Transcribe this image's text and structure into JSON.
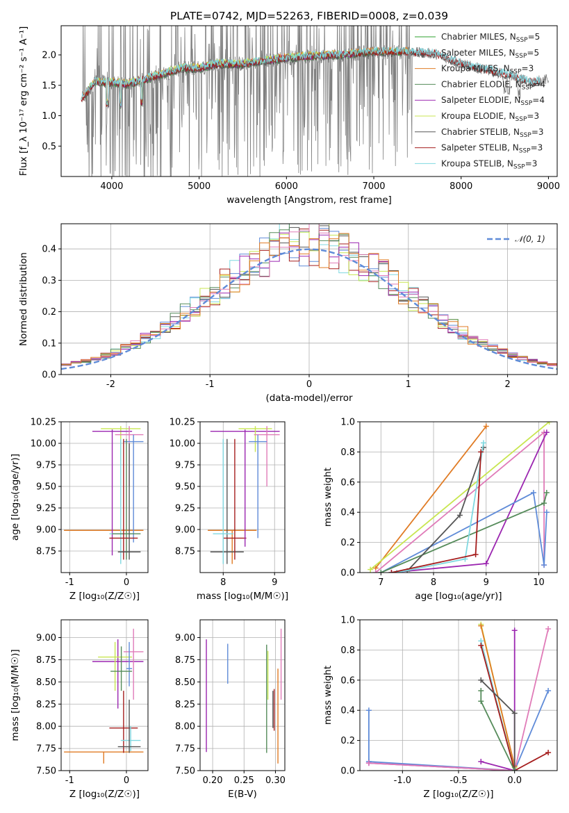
{
  "colors": {
    "Chabrier MILES": "#2ca02c",
    "Salpeter MILES": "#8c8c8c",
    "Kroupa MILES": "#e07b24",
    "Chabrier ELODIE": "#558b5a",
    "Salpeter ELODIE": "#9b26b0",
    "Kroupa ELODIE": "#c8e650",
    "Chabrier STELIB": "#555555",
    "Salpeter STELIB": "#a51d1d",
    "Kroupa STELIB": "#7fd8e0",
    "blue": "#5f8bd8",
    "pink": "#e07bb8",
    "data": "#808080",
    "normal": "#5f8bd8"
  },
  "chart_data": [
    {
      "id": "spectrum",
      "type": "line",
      "title": "PLATE=0742, MJD=52263, FIBERID=0008, z=0.039",
      "xlabel": "wavelength [Angstrom, rest frame]",
      "ylabel": "Flux [f_λ 10⁻¹⁷ erg cm⁻² s⁻¹ A⁻¹]",
      "xlim": [
        3420,
        9100
      ],
      "ylim": [
        0,
        2.48
      ],
      "xticks": [
        4000,
        5000,
        6000,
        7000,
        8000,
        9000
      ],
      "yticks": [
        0.5,
        1.0,
        1.5,
        2.0
      ],
      "legend_position": "top-right",
      "legend": [
        {
          "label": "Chabrier MILES, N",
          "sub": "SSP",
          "suffix": "=5",
          "series": "Chabrier MILES"
        },
        {
          "label": "Salpeter MILES, N",
          "sub": "SSP",
          "suffix": "=5",
          "series": "Salpeter MILES"
        },
        {
          "label": "Kroupa MILES, N",
          "sub": "SSP",
          "suffix": "=3",
          "series": "Kroupa MILES"
        },
        {
          "label": "Chabrier ELODIE, N",
          "sub": "SSP",
          "suffix": "=4",
          "series": "Chabrier ELODIE"
        },
        {
          "label": "Salpeter ELODIE, N",
          "sub": "SSP",
          "suffix": "=4",
          "series": "Salpeter ELODIE"
        },
        {
          "label": "Kroupa ELODIE, N",
          "sub": "SSP",
          "suffix": "=3",
          "series": "Kroupa ELODIE"
        },
        {
          "label": "Chabrier STELIB, N",
          "sub": "SSP",
          "suffix": "=3",
          "series": "Chabrier STELIB"
        },
        {
          "label": "Salpeter STELIB, N",
          "sub": "SSP",
          "suffix": "=3",
          "series": "Salpeter STELIB"
        },
        {
          "label": "Kroupa STELIB, N",
          "sub": "SSP",
          "suffix": "=3",
          "series": "Kroupa STELIB"
        }
      ],
      "continuum": [
        [
          3650,
          1.25
        ],
        [
          3800,
          1.55
        ],
        [
          4000,
          1.55
        ],
        [
          4200,
          1.52
        ],
        [
          4500,
          1.65
        ],
        [
          4800,
          1.78
        ],
        [
          5000,
          1.78
        ],
        [
          5200,
          1.85
        ],
        [
          5500,
          1.85
        ],
        [
          6000,
          1.95
        ],
        [
          6300,
          1.98
        ],
        [
          6600,
          2.0
        ],
        [
          7000,
          2.05
        ],
        [
          7400,
          2.05
        ],
        [
          7700,
          2.02
        ],
        [
          8000,
          1.85
        ],
        [
          8300,
          1.75
        ],
        [
          8600,
          1.65
        ],
        [
          8800,
          1.55
        ],
        [
          9000,
          1.6
        ]
      ],
      "model_range": {
        "Chabrier MILES": [
          3700,
          7400
        ],
        "Salpeter MILES": [
          3700,
          7400
        ],
        "Kroupa MILES": [
          3650,
          7450
        ],
        "Chabrier ELODIE": [
          3700,
          6800
        ],
        "Salpeter ELODIE": [
          3700,
          6800
        ],
        "Kroupa ELODIE": [
          3700,
          6800
        ],
        "Chabrier STELIB": [
          3650,
          8900
        ],
        "Salpeter STELIB": [
          3650,
          8900
        ],
        "Kroupa STELIB": [
          3650,
          8900
        ]
      },
      "data_noise_until": 7450
    },
    {
      "id": "residuals",
      "type": "histogram",
      "xlabel": "(data-model)/error",
      "ylabel": "Normed distribution",
      "xlim": [
        -2.5,
        2.5
      ],
      "ylim": [
        0,
        0.48
      ],
      "xticks": [
        -2,
        -1,
        0,
        1,
        2
      ],
      "yticks": [
        0.0,
        0.1,
        0.2,
        0.3,
        0.4
      ],
      "legend_position": "top-right",
      "normal_label": "𝒩(0, 1)",
      "bin_width": 0.1,
      "series_colors": [
        "#5f8bd8",
        "#7fd8e0",
        "#a51d1d",
        "#c8e650",
        "#555555",
        "#558b5a",
        "#9b26b0",
        "#e07bb8",
        "#e07b24"
      ]
    },
    {
      "id": "age_vs_Z",
      "type": "scatter",
      "xlabel": "Z [log₁₀(Z/Z☉)]",
      "ylabel": "age  [log₁₀(age/yr)]",
      "xlim": [
        -1.15,
        0.38
      ],
      "ylim": [
        8.5,
        10.25
      ],
      "xticks": [
        -1,
        0
      ],
      "yticks": [
        8.75,
        9.0,
        9.25,
        9.5,
        9.75,
        10.0,
        10.25
      ],
      "points": [
        {
          "c": "#e07b24",
          "x": -1.1,
          "x2": 0.3,
          "y": 8.99,
          "y1": 8.99,
          "y2": 8.99
        },
        {
          "c": "#c8e650",
          "x": -0.45,
          "x2": 0.25,
          "y": 10.17,
          "y1": 9.8,
          "y2": 10.2
        },
        {
          "c": "#9b26b0",
          "x": -0.6,
          "x2": 0.1,
          "y": 10.14,
          "y1": 8.7,
          "y2": 10.16
        },
        {
          "c": "#e07bb8",
          "x": -0.2,
          "x2": 0.3,
          "y": 10.1,
          "y1": 9.5,
          "y2": 10.2
        },
        {
          "c": "#5f8bd8",
          "x": -0.05,
          "x2": 0.3,
          "y": 10.02,
          "y1": 8.85,
          "y2": 10.1
        },
        {
          "c": "#7fd8e0",
          "x": -0.3,
          "x2": 0.1,
          "y": 8.95,
          "y1": 8.6,
          "y2": 10.05
        },
        {
          "c": "#558b5a",
          "x": -0.25,
          "x2": 0.25,
          "y": 8.95,
          "y1": 8.65,
          "y2": 10.05
        },
        {
          "c": "#a51d1d",
          "x": -0.3,
          "x2": 0.2,
          "y": 8.9,
          "y1": 8.65,
          "y2": 10.05
        },
        {
          "c": "#555555",
          "x": -0.15,
          "x2": 0.25,
          "y": 8.74,
          "y1": 8.65,
          "y2": 10.0
        }
      ]
    },
    {
      "id": "age_vs_mass",
      "type": "scatter",
      "xlabel": "mass [log₁₀(M/M☉)]",
      "ylabel": "",
      "xlim": [
        7.55,
        9.2
      ],
      "ylim": [
        8.5,
        10.25
      ],
      "xticks": [
        8,
        9
      ],
      "yticks": [
        8.75,
        9.0,
        9.25,
        9.5,
        9.75,
        10.0,
        10.25
      ],
      "points": [
        {
          "c": "#e07b24",
          "x": 7.7,
          "x2": 8.65,
          "y": 8.99,
          "y1": 8.6,
          "y2": 8.99
        },
        {
          "c": "#555555",
          "x": 7.75,
          "x2": 8.4,
          "y": 8.74,
          "y1": 8.6,
          "y2": 10.05
        },
        {
          "c": "#a51d1d",
          "x": 8.0,
          "x2": 8.45,
          "y": 8.9,
          "y1": 8.65,
          "y2": 10.05
        },
        {
          "c": "#9b26b0",
          "x": 7.75,
          "x2": 9.1,
          "y": 10.14,
          "y1": 8.8,
          "y2": 10.16
        },
        {
          "c": "#c8e650",
          "x": 8.3,
          "x2": 8.95,
          "y": 10.17,
          "y1": 9.9,
          "y2": 10.2
        },
        {
          "c": "#e07bb8",
          "x": 8.6,
          "x2": 9.1,
          "y": 10.1,
          "y1": 9.5,
          "y2": 10.2
        },
        {
          "c": "#5f8bd8",
          "x": 8.5,
          "x2": 8.85,
          "y": 10.02,
          "y1": 8.9,
          "y2": 10.1
        },
        {
          "c": "#7fd8e0",
          "x": 7.8,
          "x2": 8.2,
          "y": 8.95,
          "y1": 8.6,
          "y2": 10.05
        }
      ]
    },
    {
      "id": "massweight_vs_age",
      "type": "line",
      "xlabel": "age  [log₁₀(age/yr)]",
      "ylabel": "mass weight",
      "xlim": [
        6.6,
        10.35
      ],
      "ylim": [
        0,
        1.0
      ],
      "xticks": [
        7,
        8,
        9,
        10
      ],
      "yticks": [
        0.0,
        0.2,
        0.4,
        0.6,
        0.8,
        1.0
      ],
      "series": [
        {
          "c": "#e07b24",
          "pts": [
            [
              6.9,
              0.03
            ],
            [
              9.0,
              0.97
            ]
          ]
        },
        {
          "c": "#c8e650",
          "pts": [
            [
              6.8,
              0.02
            ],
            [
              10.2,
              1.0
            ]
          ]
        },
        {
          "c": "#e07bb8",
          "pts": [
            [
              6.9,
              0.0
            ],
            [
              10.1,
              0.93
            ],
            [
              10.1,
              0.05
            ]
          ]
        },
        {
          "c": "#9b26b0",
          "pts": [
            [
              7.2,
              0.0
            ],
            [
              9.0,
              0.06
            ],
            [
              10.15,
              0.93
            ]
          ]
        },
        {
          "c": "#5f8bd8",
          "pts": [
            [
              7.0,
              0.0
            ],
            [
              9.9,
              0.53
            ],
            [
              10.1,
              0.05
            ],
            [
              10.15,
              0.4
            ]
          ]
        },
        {
          "c": "#558b5a",
          "pts": [
            [
              7.0,
              0.0
            ],
            [
              10.1,
              0.46
            ],
            [
              10.15,
              0.53
            ]
          ]
        },
        {
          "c": "#555555",
          "pts": [
            [
              7.5,
              0.01
            ],
            [
              8.5,
              0.38
            ],
            [
              8.95,
              0.83
            ]
          ]
        },
        {
          "c": "#7fd8e0",
          "pts": [
            [
              7.3,
              0.0
            ],
            [
              8.6,
              0.09
            ],
            [
              8.95,
              0.86
            ]
          ]
        },
        {
          "c": "#a51d1d",
          "pts": [
            [
              7.2,
              0.0
            ],
            [
              8.8,
              0.12
            ],
            [
              8.9,
              0.8
            ]
          ]
        }
      ]
    },
    {
      "id": "mass_vs_Z",
      "type": "scatter",
      "xlabel": "Z [log₁₀(Z/Z☉)]",
      "ylabel": "mass [log₁₀(M/M☉)]",
      "xlim": [
        -1.15,
        0.38
      ],
      "ylim": [
        7.5,
        9.2
      ],
      "xticks": [
        -1,
        0
      ],
      "yticks": [
        7.5,
        7.75,
        8.0,
        8.25,
        8.5,
        8.75,
        9.0
      ],
      "points": [
        {
          "c": "#e07b24",
          "x": -1.1,
          "x2": 0.3,
          "y": 7.71,
          "y1": 7.58,
          "y2": 7.71
        },
        {
          "c": "#9b26b0",
          "x": -0.6,
          "x2": 0.3,
          "y": 8.73,
          "y1": 8.2,
          "y2": 8.98
        },
        {
          "c": "#c8e650",
          "x": -0.5,
          "x2": 0.1,
          "y": 8.78,
          "y1": 8.4,
          "y2": 8.95
        },
        {
          "c": "#e07bb8",
          "x": -0.05,
          "x2": 0.3,
          "y": 8.84,
          "y1": 8.3,
          "y2": 9.1
        },
        {
          "c": "#5f8bd8",
          "x": 0.0,
          "x2": 0.1,
          "y": 8.65,
          "y1": 8.45,
          "y2": 8.95
        },
        {
          "c": "#558b5a",
          "x": -0.28,
          "x2": 0.1,
          "y": 8.62,
          "y1": 8.4,
          "y2": 8.9
        },
        {
          "c": "#a51d1d",
          "x": -0.3,
          "x2": 0.2,
          "y": 7.98,
          "y1": 7.7,
          "y2": 8.4
        },
        {
          "c": "#7fd8e0",
          "x": -0.1,
          "x2": 0.25,
          "y": 7.84,
          "y1": 7.72,
          "y2": 8.0
        },
        {
          "c": "#555555",
          "x": -0.15,
          "x2": 0.25,
          "y": 7.77,
          "y1": 7.7,
          "y2": 8.3
        }
      ]
    },
    {
      "id": "mass_vs_ebv",
      "type": "scatter",
      "xlabel": "E(B-V)",
      "ylabel": "",
      "xlim": [
        0.18,
        0.315
      ],
      "ylim": [
        7.5,
        9.2
      ],
      "xticks": [
        0.2,
        0.25,
        0.3
      ],
      "yticks": [
        7.5,
        7.75,
        8.0,
        8.25,
        8.5,
        8.75,
        9.0
      ],
      "points": [
        {
          "c": "#9b26b0",
          "x": 0.19,
          "y1": 7.71,
          "y2": 8.98
        },
        {
          "c": "#5f8bd8",
          "x": 0.224,
          "y1": 8.48,
          "y2": 8.93
        },
        {
          "c": "#558b5a",
          "x": 0.286,
          "y1": 7.7,
          "y2": 8.92
        },
        {
          "c": "#c8e650",
          "x": 0.288,
          "y1": 8.3,
          "y2": 8.85
        },
        {
          "c": "#555555",
          "x": 0.296,
          "y1": 7.98,
          "y2": 8.4
        },
        {
          "c": "#a51d1d",
          "x": 0.298,
          "y1": 7.95,
          "y2": 8.42
        },
        {
          "c": "#e07b24",
          "x": 0.304,
          "y1": 7.58,
          "y2": 8.65
        },
        {
          "c": "#e07bb8",
          "x": 0.309,
          "y1": 8.3,
          "y2": 9.1
        }
      ]
    },
    {
      "id": "massweight_vs_Z",
      "type": "line",
      "xlabel": "Z [log₁₀(Z/Z☉)]",
      "ylabel": "mass weight",
      "xlim": [
        -1.38,
        0.38
      ],
      "ylim": [
        0,
        1.0
      ],
      "xticks": [
        -1.0,
        -0.5,
        0.0
      ],
      "yticks": [
        0.0,
        0.2,
        0.4,
        0.6,
        0.8,
        1.0
      ],
      "series": [
        {
          "c": "#5f8bd8",
          "pts": [
            [
              -1.3,
              0.4
            ],
            [
              -1.3,
              0.06
            ],
            [
              0.0,
              0.0
            ],
            [
              0.3,
              0.53
            ]
          ]
        },
        {
          "c": "#9b26b0",
          "pts": [
            [
              -1.3,
              0.05
            ],
            [
              0.0,
              0.0
            ],
            [
              -0.3,
              0.06
            ],
            [
              0.0,
              0.0
            ],
            [
              0.0,
              0.93
            ]
          ]
        },
        {
          "c": "#e07bb8",
          "pts": [
            [
              -1.3,
              0.05
            ],
            [
              0.0,
              0.0
            ],
            [
              0.3,
              0.94
            ]
          ]
        },
        {
          "c": "#c8e650",
          "pts": [
            [
              -0.3,
              0.97
            ],
            [
              0.0,
              0.02
            ]
          ]
        },
        {
          "c": "#e07b24",
          "pts": [
            [
              -0.3,
              0.96
            ],
            [
              0.0,
              0.03
            ]
          ]
        },
        {
          "c": "#7fd8e0",
          "pts": [
            [
              -0.3,
              0.86
            ],
            [
              0.0,
              0.0
            ]
          ]
        },
        {
          "c": "#a51d1d",
          "pts": [
            [
              -0.3,
              0.83
            ],
            [
              0.0,
              0.0
            ],
            [
              0.3,
              0.12
            ]
          ]
        },
        {
          "c": "#555555",
          "pts": [
            [
              -0.3,
              0.6
            ],
            [
              0.0,
              0.38
            ],
            [
              0.0,
              0.0
            ]
          ]
        },
        {
          "c": "#558b5a",
          "pts": [
            [
              -0.3,
              0.53
            ],
            [
              -0.3,
              0.46
            ],
            [
              0.0,
              0.0
            ]
          ]
        }
      ]
    }
  ]
}
